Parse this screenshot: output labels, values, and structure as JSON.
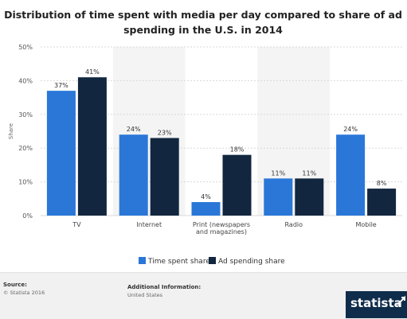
{
  "chart_data": {
    "type": "bar",
    "title_line1": "Distribution of time spent with media per day compared to share of ad",
    "title_line2": "spending in the U.S. in 2014",
    "ylabel": "Share",
    "ylim": [
      0,
      50
    ],
    "yticks": [
      "0%",
      "10%",
      "20%",
      "30%",
      "40%",
      "50%"
    ],
    "categories": [
      {
        "lines": [
          "TV"
        ]
      },
      {
        "lines": [
          "Internet"
        ]
      },
      {
        "lines": [
          "Print (newspapers",
          "and magazines)"
        ]
      },
      {
        "lines": [
          "Radio"
        ]
      },
      {
        "lines": [
          "Mobile"
        ]
      }
    ],
    "series": [
      {
        "name": "Time spent share",
        "color": "#2a77d8",
        "values": [
          37,
          24,
          4,
          11,
          24
        ],
        "labels": [
          "37%",
          "24%",
          "4%",
          "11%",
          "24%"
        ]
      },
      {
        "name": "Ad spending share",
        "color": "#12263f",
        "values": [
          41,
          23,
          18,
          11,
          8
        ],
        "labels": [
          "41%",
          "23%",
          "18%",
          "11%",
          "8%"
        ]
      }
    ],
    "grid": true,
    "legend_position": "bottom-center"
  },
  "footer": {
    "source_heading": "Source:",
    "source_text": "© Statista 2016",
    "info_heading": "Additional Information:",
    "info_text": "United States",
    "brand": "statista"
  }
}
